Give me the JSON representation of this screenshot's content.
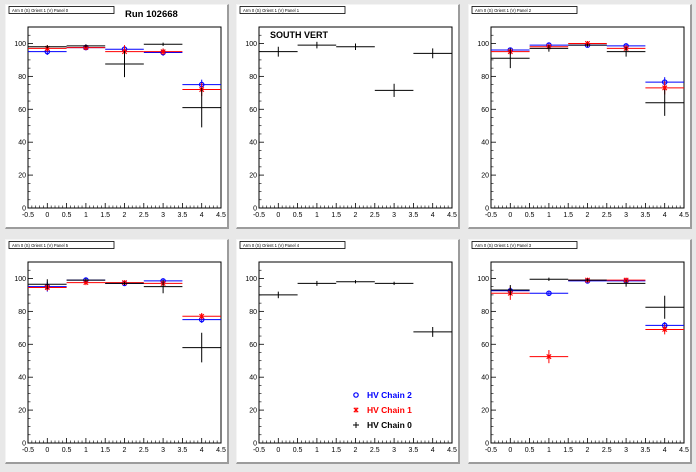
{
  "run_label": "Run 102668",
  "panel_annotation": "SOUTH VERT",
  "legend": [
    {
      "label": "HV Chain 2",
      "color": "#0000ff",
      "marker": "open-circle"
    },
    {
      "label": "HV Chain 1",
      "color": "#ff0000",
      "marker": "star"
    },
    {
      "label": "HV Chain 0",
      "color": "#000000",
      "marker": "plus"
    }
  ],
  "colors": {
    "chain2": "#0000ff",
    "chain1": "#ff0000",
    "chain0": "#000000",
    "frame": "#ffff00",
    "canvas": "#e8e8e8"
  },
  "chart_data": [
    {
      "type": "scatter",
      "title": "Arm 0 (S) Orient 1 (V) Panel 0",
      "xlim": [
        -0.5,
        4.5
      ],
      "ylim": [
        0,
        110
      ],
      "xticks": [
        "-0.5",
        "0",
        "0.5",
        "1",
        "1.5",
        "2",
        "2.5",
        "3",
        "3.5",
        "4",
        "4.5"
      ],
      "yticks": [
        "0",
        "20",
        "40",
        "60",
        "80",
        "100"
      ],
      "series": [
        {
          "name": "HV Chain 2",
          "color": "#0000ff",
          "marker": "circle",
          "points": [
            {
              "x": 0,
              "y": 95,
              "err": 2
            },
            {
              "x": 1,
              "y": 97.5,
              "err": 1
            },
            {
              "x": 2,
              "y": 96.5,
              "err": 1.5
            },
            {
              "x": 3,
              "y": 94.5,
              "err": 2
            },
            {
              "x": 4,
              "y": 75,
              "err": 3
            }
          ]
        },
        {
          "name": "HV Chain 1",
          "color": "#ff0000",
          "marker": "star",
          "points": [
            {
              "x": 0,
              "y": 97,
              "err": 2
            },
            {
              "x": 1,
              "y": 97.5,
              "err": 1
            },
            {
              "x": 2,
              "y": 95,
              "err": 4
            },
            {
              "x": 3,
              "y": 95,
              "err": 2
            },
            {
              "x": 4,
              "y": 72,
              "err": 4
            }
          ]
        },
        {
          "name": "HV Chain 0",
          "color": "#000000",
          "marker": "plus",
          "points": [
            {
              "x": 0,
              "y": 98,
              "err": 1
            },
            {
              "x": 1,
              "y": 98.5,
              "err": 1
            },
            {
              "x": 2,
              "y": 87.5,
              "err": 8
            },
            {
              "x": 3,
              "y": 99.5,
              "err": 1
            },
            {
              "x": 4,
              "y": 61,
              "err": 12
            }
          ]
        }
      ]
    },
    {
      "type": "scatter",
      "title": "Arm 0 (S) Orient 1 (V) Panel 1",
      "xlim": [
        -0.5,
        4.5
      ],
      "ylim": [
        0,
        110
      ],
      "xticks": [
        "-0.5",
        "0",
        "0.5",
        "1",
        "1.5",
        "2",
        "2.5",
        "3",
        "3.5",
        "4",
        "4.5"
      ],
      "yticks": [
        "0",
        "20",
        "40",
        "60",
        "80",
        "100"
      ],
      "series": [
        {
          "name": "HV Chain 0",
          "color": "#000000",
          "marker": "plus",
          "points": [
            {
              "x": 0,
              "y": 95,
              "err": 3
            },
            {
              "x": 1,
              "y": 99,
              "err": 2
            },
            {
              "x": 2,
              "y": 98,
              "err": 2
            },
            {
              "x": 3,
              "y": 71.5,
              "err": 4
            },
            {
              "x": 4,
              "y": 94,
              "err": 3
            }
          ]
        }
      ]
    },
    {
      "type": "scatter",
      "title": "Arm 0 (S) Orient 1 (V) Panel 2",
      "xlim": [
        -0.5,
        4.5
      ],
      "ylim": [
        0,
        110
      ],
      "xticks": [
        "-0.5",
        "0",
        "0.5",
        "1",
        "1.5",
        "2",
        "2.5",
        "3",
        "3.5",
        "4",
        "4.5"
      ],
      "yticks": [
        "0",
        "20",
        "40",
        "60",
        "80",
        "100"
      ],
      "series": [
        {
          "name": "HV Chain 2",
          "color": "#0000ff",
          "marker": "circle",
          "points": [
            {
              "x": 0,
              "y": 96,
              "err": 1.5
            },
            {
              "x": 1,
              "y": 99,
              "err": 1
            },
            {
              "x": 2,
              "y": 99,
              "err": 1
            },
            {
              "x": 3,
              "y": 98.5,
              "err": 1.5
            },
            {
              "x": 4,
              "y": 76.5,
              "err": 3
            }
          ]
        },
        {
          "name": "HV Chain 1",
          "color": "#ff0000",
          "marker": "star",
          "points": [
            {
              "x": 0,
              "y": 95,
              "err": 2
            },
            {
              "x": 1,
              "y": 98,
              "err": 1
            },
            {
              "x": 2,
              "y": 100,
              "err": 1
            },
            {
              "x": 3,
              "y": 97,
              "err": 2
            },
            {
              "x": 4,
              "y": 73,
              "err": 4
            }
          ]
        },
        {
          "name": "HV Chain 0",
          "color": "#000000",
          "marker": "plus",
          "points": [
            {
              "x": 0,
              "y": 91,
              "err": 6
            },
            {
              "x": 1,
              "y": 97,
              "err": 2
            },
            {
              "x": 2,
              "y": 99,
              "err": 1
            },
            {
              "x": 3,
              "y": 95,
              "err": 3
            },
            {
              "x": 4,
              "y": 64,
              "err": 8
            }
          ]
        }
      ]
    },
    {
      "type": "scatter",
      "title": "Arm 0 (S) Orient 1 (V) Panel 5",
      "xlim": [
        -0.5,
        4.5
      ],
      "ylim": [
        0,
        110
      ],
      "xticks": [
        "-0.5",
        "0",
        "0.5",
        "1",
        "1.5",
        "2",
        "2.5",
        "3",
        "3.5",
        "4",
        "4.5"
      ],
      "yticks": [
        "0",
        "20",
        "40",
        "60",
        "80",
        "100"
      ],
      "series": [
        {
          "name": "HV Chain 2",
          "color": "#0000ff",
          "marker": "circle",
          "points": [
            {
              "x": 0,
              "y": 95,
              "err": 3
            },
            {
              "x": 1,
              "y": 99,
              "err": 1
            },
            {
              "x": 2,
              "y": 97,
              "err": 1
            },
            {
              "x": 3,
              "y": 98.5,
              "err": 1.5
            },
            {
              "x": 4,
              "y": 75,
              "err": 2
            }
          ]
        },
        {
          "name": "HV Chain 1",
          "color": "#ff0000",
          "marker": "star",
          "points": [
            {
              "x": 0,
              "y": 94.5,
              "err": 2
            },
            {
              "x": 1,
              "y": 97.5,
              "err": 1
            },
            {
              "x": 2,
              "y": 97.5,
              "err": 1
            },
            {
              "x": 3,
              "y": 97,
              "err": 2
            },
            {
              "x": 4,
              "y": 77,
              "err": 2
            }
          ]
        },
        {
          "name": "HV Chain 0",
          "color": "#000000",
          "marker": "plus",
          "points": [
            {
              "x": 0,
              "y": 96.5,
              "err": 3
            },
            {
              "x": 1,
              "y": 99,
              "err": 1
            },
            {
              "x": 2,
              "y": 97,
              "err": 1
            },
            {
              "x": 3,
              "y": 95,
              "err": 4
            },
            {
              "x": 4,
              "y": 58,
              "err": 9
            }
          ]
        }
      ]
    },
    {
      "type": "scatter",
      "title": "Arm 0 (S) Orient 1 (V) Panel 4",
      "xlim": [
        -0.5,
        4.5
      ],
      "ylim": [
        0,
        110
      ],
      "xticks": [
        "-0.5",
        "0",
        "0.5",
        "1",
        "1.5",
        "2",
        "2.5",
        "3",
        "3.5",
        "4",
        "4.5"
      ],
      "yticks": [
        "0",
        "20",
        "40",
        "60",
        "80",
        "100"
      ],
      "series": [
        {
          "name": "HV Chain 0",
          "color": "#000000",
          "marker": "plus",
          "points": [
            {
              "x": 0,
              "y": 90,
              "err": 2
            },
            {
              "x": 1,
              "y": 97,
              "err": 1.5
            },
            {
              "x": 2,
              "y": 98,
              "err": 1
            },
            {
              "x": 3,
              "y": 97,
              "err": 1
            },
            {
              "x": 4,
              "y": 67.5,
              "err": 3
            }
          ]
        }
      ]
    },
    {
      "type": "scatter",
      "title": "Arm 0 (S) Orient 1 (V) Panel 3",
      "xlim": [
        -0.5,
        4.5
      ],
      "ylim": [
        0,
        110
      ],
      "xticks": [
        "-0.5",
        "0",
        "0.5",
        "1",
        "1.5",
        "2",
        "2.5",
        "3",
        "3.5",
        "4",
        "4.5"
      ],
      "yticks": [
        "0",
        "20",
        "40",
        "60",
        "80",
        "100"
      ],
      "series": [
        {
          "name": "HV Chain 2",
          "color": "#0000ff",
          "marker": "circle",
          "points": [
            {
              "x": 0,
              "y": 92.5,
              "err": 2
            },
            {
              "x": 1,
              "y": 91,
              "err": 1
            },
            {
              "x": 2,
              "y": 98.5,
              "err": 1
            },
            {
              "x": 3,
              "y": 98.5,
              "err": 1
            },
            {
              "x": 4,
              "y": 71.5,
              "err": 2
            }
          ]
        },
        {
          "name": "HV Chain 1",
          "color": "#ff0000",
          "marker": "star",
          "points": [
            {
              "x": 0,
              "y": 91,
              "err": 4
            },
            {
              "x": 1,
              "y": 52.5,
              "err": 4
            },
            {
              "x": 2,
              "y": 99,
              "err": 1
            },
            {
              "x": 3,
              "y": 99,
              "err": 1
            },
            {
              "x": 4,
              "y": 69,
              "err": 3
            }
          ]
        },
        {
          "name": "HV Chain 0",
          "color": "#000000",
          "marker": "plus",
          "points": [
            {
              "x": 0,
              "y": 93,
              "err": 3
            },
            {
              "x": 1,
              "y": 99.5,
              "err": 1
            },
            {
              "x": 2,
              "y": 99,
              "err": 1
            },
            {
              "x": 3,
              "y": 97,
              "err": 2
            },
            {
              "x": 4,
              "y": 82.5,
              "err": 7
            }
          ]
        }
      ]
    }
  ]
}
